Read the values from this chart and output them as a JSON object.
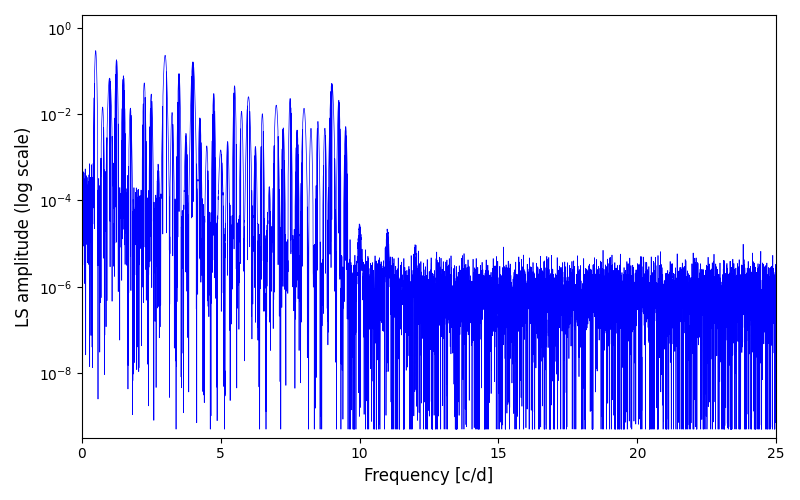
{
  "title": "",
  "xlabel": "Frequency [c/d]",
  "ylabel": "LS amplitude (log scale)",
  "xlim": [
    0,
    25
  ],
  "ylim_log": [
    -9.5,
    0.3
  ],
  "line_color": "#0000FF",
  "line_width": 0.5,
  "yscale": "log",
  "figsize": [
    8.0,
    5.0
  ],
  "dpi": 100,
  "freq_max": 25.0,
  "n_points": 8000,
  "seed": 7
}
